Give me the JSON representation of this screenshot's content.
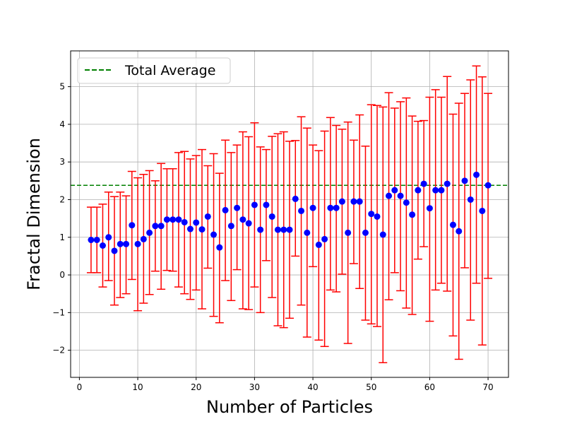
{
  "chart_data": {
    "type": "scatter",
    "xlabel": "Number of Particles",
    "ylabel": "Fractal Dimension",
    "xlim": [
      -1.5,
      73.5
    ],
    "ylim": [
      -2.72,
      5.95
    ],
    "x_ticks": [
      0,
      10,
      20,
      30,
      40,
      50,
      60,
      70
    ],
    "y_ticks": [
      -2,
      -1,
      0,
      1,
      2,
      3,
      4,
      5
    ],
    "x_tick_labels": [
      "0",
      "10",
      "20",
      "30",
      "40",
      "50",
      "60",
      "70"
    ],
    "y_tick_labels": [
      "−2",
      "−1",
      "0",
      "1",
      "2",
      "3",
      "4",
      "5"
    ],
    "grid": true,
    "legend_position": "top-left",
    "reference_line": {
      "name": "Total Average",
      "y": 2.38,
      "color": "#008000",
      "style": "dashed"
    },
    "series": [
      {
        "color": "#0000ff",
        "errorbar_color": "#ff0000",
        "x": [
          2,
          3,
          4,
          5,
          6,
          7,
          8,
          9,
          10,
          11,
          12,
          13,
          14,
          15,
          16,
          17,
          18,
          19,
          20,
          21,
          22,
          23,
          24,
          25,
          26,
          27,
          28,
          29,
          30,
          31,
          32,
          33,
          34,
          35,
          36,
          37,
          38,
          39,
          40,
          41,
          42,
          43,
          44,
          45,
          46,
          47,
          48,
          49,
          50,
          51,
          52,
          53,
          54,
          55,
          56,
          57,
          58,
          59,
          60,
          61,
          62,
          63,
          64,
          65,
          66,
          67,
          68,
          69,
          70
        ],
        "y": [
          0.93,
          0.93,
          0.78,
          1.0,
          0.64,
          0.82,
          0.82,
          1.32,
          0.82,
          0.95,
          1.12,
          1.3,
          1.3,
          1.47,
          1.47,
          1.47,
          1.4,
          1.22,
          1.39,
          1.21,
          1.55,
          1.07,
          0.73,
          1.72,
          1.3,
          1.78,
          1.47,
          1.37,
          1.86,
          1.2,
          1.86,
          1.55,
          1.2,
          1.2,
          1.2,
          2.02,
          1.7,
          1.12,
          1.78,
          0.8,
          0.95,
          1.78,
          1.78,
          1.95,
          1.12,
          1.95,
          1.95,
          1.12,
          1.62,
          1.55,
          1.07,
          2.1,
          2.25,
          2.1,
          1.92,
          1.6,
          2.25,
          2.42,
          1.77,
          2.25,
          2.25,
          2.42,
          1.33,
          1.16,
          2.5,
          2.0,
          2.66,
          1.7,
          2.38
        ],
        "yerr_low": [
          0.06,
          0.06,
          -0.32,
          -0.15,
          -0.8,
          -0.6,
          -0.5,
          -0.12,
          -0.95,
          -0.75,
          -0.52,
          0.1,
          -0.38,
          0.12,
          0.1,
          -0.32,
          -0.5,
          -0.65,
          -0.4,
          -0.9,
          0.18,
          -1.1,
          -1.27,
          -0.15,
          -0.68,
          0.14,
          -0.9,
          -0.92,
          -0.32,
          -1.0,
          0.38,
          -0.6,
          -1.35,
          -1.4,
          -1.15,
          0.5,
          -0.8,
          -1.65,
          0.22,
          -1.73,
          -1.9,
          -0.4,
          -0.45,
          0.02,
          -1.82,
          0.3,
          -0.36,
          -1.2,
          -1.3,
          -1.37,
          -2.33,
          -0.66,
          0.06,
          -0.42,
          -0.88,
          -1.05,
          0.42,
          0.75,
          -1.23,
          -0.4,
          -0.22,
          -0.43,
          -1.62,
          -2.24,
          0.19,
          -1.2,
          -0.22,
          -1.86,
          -0.09
        ],
        "yerr_high": [
          1.8,
          1.8,
          1.88,
          2.2,
          2.08,
          2.2,
          2.1,
          2.75,
          2.58,
          2.67,
          2.77,
          2.5,
          2.96,
          2.82,
          2.82,
          3.25,
          3.28,
          3.08,
          3.17,
          3.33,
          2.9,
          3.22,
          2.7,
          3.58,
          3.25,
          3.45,
          3.8,
          3.67,
          4.04,
          3.4,
          3.33,
          3.68,
          3.75,
          3.8,
          3.55,
          3.57,
          4.2,
          3.9,
          3.45,
          3.3,
          3.82,
          4.18,
          3.97,
          3.87,
          4.06,
          3.58,
          4.25,
          3.42,
          4.52,
          4.5,
          4.46,
          4.84,
          4.43,
          4.6,
          4.7,
          4.22,
          4.08,
          4.1,
          4.72,
          4.92,
          4.72,
          5.27,
          4.27,
          4.56,
          4.82,
          5.18,
          5.55,
          5.26,
          4.82
        ]
      }
    ]
  }
}
